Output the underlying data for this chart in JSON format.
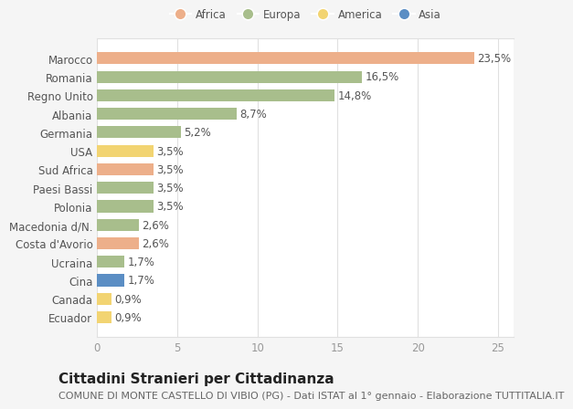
{
  "countries": [
    "Marocco",
    "Romania",
    "Regno Unito",
    "Albania",
    "Germania",
    "USA",
    "Sud Africa",
    "Paesi Bassi",
    "Polonia",
    "Macedonia d/N.",
    "Costa d'Avorio",
    "Ucraina",
    "Cina",
    "Canada",
    "Ecuador"
  ],
  "values": [
    23.5,
    16.5,
    14.8,
    8.7,
    5.2,
    3.5,
    3.5,
    3.5,
    3.5,
    2.6,
    2.6,
    1.7,
    1.7,
    0.9,
    0.9
  ],
  "labels": [
    "23,5%",
    "16,5%",
    "14,8%",
    "8,7%",
    "5,2%",
    "3,5%",
    "3,5%",
    "3,5%",
    "3,5%",
    "2,6%",
    "2,6%",
    "1,7%",
    "1,7%",
    "0,9%",
    "0,9%"
  ],
  "continents": [
    "Africa",
    "Europa",
    "Europa",
    "Europa",
    "Europa",
    "America",
    "Africa",
    "Europa",
    "Europa",
    "Europa",
    "Africa",
    "Europa",
    "Asia",
    "America",
    "America"
  ],
  "continent_colors": {
    "Africa": "#EDAF8A",
    "Europa": "#A8BE8C",
    "America": "#F2D472",
    "Asia": "#5B8EC4"
  },
  "legend_order": [
    "Africa",
    "Europa",
    "America",
    "Asia"
  ],
  "title": "Cittadini Stranieri per Cittadinanza",
  "subtitle": "COMUNE DI MONTE CASTELLO DI VIBIO (PG) - Dati ISTAT al 1° gennaio - Elaborazione TUTTITALIA.IT",
  "xlim": [
    0,
    26
  ],
  "xticks": [
    0,
    5,
    10,
    15,
    20,
    25
  ],
  "bg_color": "#f5f5f5",
  "bar_bg": "#ffffff",
  "grid_color": "#e0e0e0",
  "title_fontsize": 11,
  "subtitle_fontsize": 8,
  "label_fontsize": 8.5,
  "tick_fontsize": 8.5,
  "bar_height": 0.65
}
